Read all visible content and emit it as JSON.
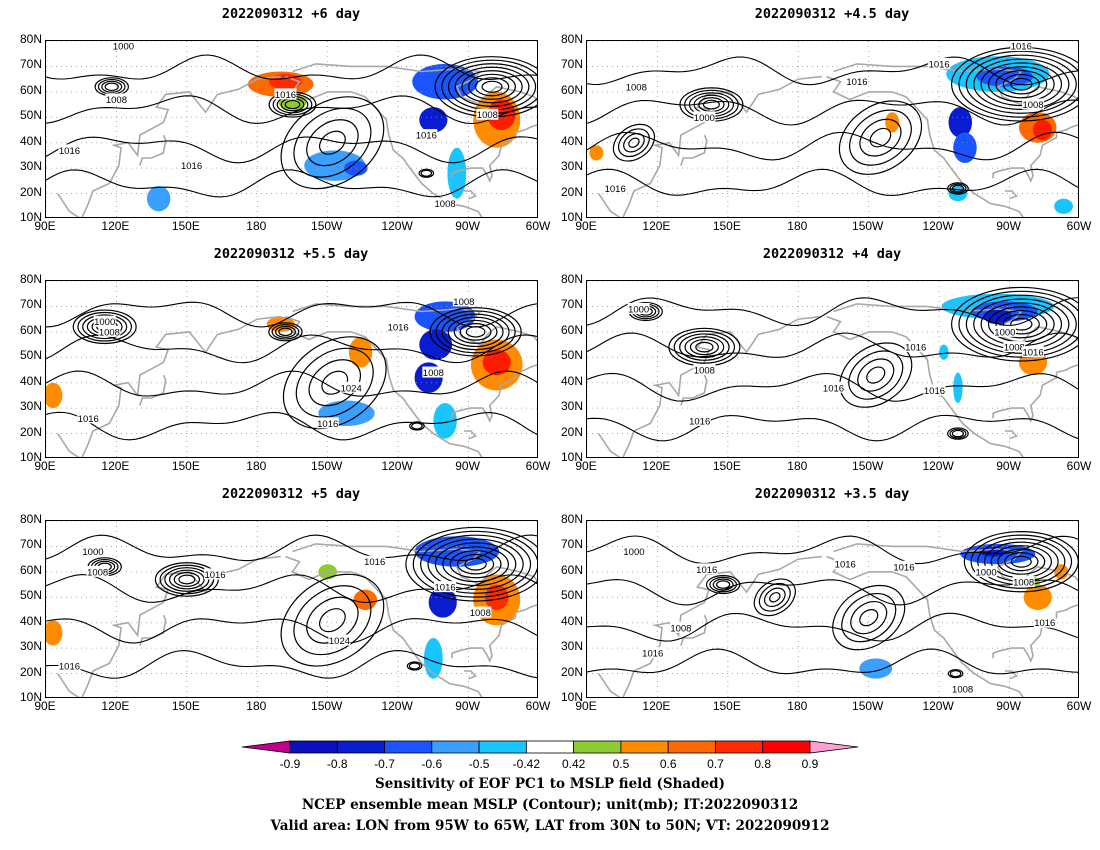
{
  "panels": [
    {
      "title": "2022090312 +6 day",
      "contour_labels": [
        "1000",
        "1008",
        "1016",
        "1016",
        "1016",
        "1016",
        "1008",
        "1008"
      ],
      "shading": [
        {
          "lon": -170,
          "lat": 63,
          "rx": 14,
          "ry": 5,
          "c": "#ff6a00"
        },
        {
          "lon": -168,
          "lat": 64,
          "rx": 7,
          "ry": 3,
          "c": "#ff2a00"
        },
        {
          "lon": -100,
          "lat": 64,
          "rx": 14,
          "ry": 7,
          "c": "#1a54ff"
        },
        {
          "lon": -105,
          "lat": 49,
          "rx": 6,
          "ry": 5,
          "c": "#0a1ccf"
        },
        {
          "lon": -78,
          "lat": 49,
          "rx": 10,
          "ry": 11,
          "c": "#ff8c00"
        },
        {
          "lon": -76,
          "lat": 51,
          "rx": 6,
          "ry": 6,
          "c": "#ff1a00"
        },
        {
          "lon": -147,
          "lat": 31,
          "rx": 13,
          "ry": 6,
          "c": "#3aa0ff"
        },
        {
          "lon": -138,
          "lat": 30,
          "rx": 5,
          "ry": 3,
          "c": "#1a54ff"
        },
        {
          "lon": 138,
          "lat": 18,
          "rx": 5,
          "ry": 5,
          "c": "#3aa0ff"
        },
        {
          "lon": -95,
          "lat": 28,
          "rx": 4,
          "ry": 10,
          "c": "#19c5ff"
        },
        {
          "lon": -165,
          "lat": 56,
          "rx": 6,
          "ry": 3,
          "c": "#8fcc32"
        }
      ]
    },
    {
      "title": "2022090312 +4.5 day",
      "contour_labels": [
        "1016",
        "1016",
        "1008",
        "1016",
        "1000",
        "1008",
        "1016"
      ],
      "shading": [
        {
          "lon": -95,
          "lat": 67,
          "rx": 22,
          "ry": 7,
          "c": "#19c5ff"
        },
        {
          "lon": -92,
          "lat": 66,
          "rx": 12,
          "ry": 4,
          "c": "#1a54ff"
        },
        {
          "lon": -111,
          "lat": 48,
          "rx": 5,
          "ry": 6,
          "c": "#0a1ccf"
        },
        {
          "lon": -109,
          "lat": 38,
          "rx": 5,
          "ry": 6,
          "c": "#1a54ff"
        },
        {
          "lon": -78,
          "lat": 46,
          "rx": 8,
          "ry": 6,
          "c": "#ff6a00"
        },
        {
          "lon": -76,
          "lat": 45,
          "rx": 4,
          "ry": 4,
          "c": "#ff1a00"
        },
        {
          "lon": -140,
          "lat": 48,
          "rx": 3,
          "ry": 4,
          "c": "#ff8c00"
        },
        {
          "lon": 94,
          "lat": 36,
          "rx": 3,
          "ry": 3,
          "c": "#ff8c00"
        },
        {
          "lon": -112,
          "lat": 20,
          "rx": 4,
          "ry": 3,
          "c": "#19c5ff"
        },
        {
          "lon": -67,
          "lat": 15,
          "rx": 4,
          "ry": 3,
          "c": "#19c5ff"
        }
      ]
    },
    {
      "title": "2022090312 +5.5 day",
      "contour_labels": [
        "1000",
        "1008",
        "1016",
        "1024",
        "1016",
        "1008",
        "1016",
        "1008"
      ],
      "shading": [
        {
          "lon": -100,
          "lat": 66,
          "rx": 13,
          "ry": 6,
          "c": "#1a54ff"
        },
        {
          "lon": -104,
          "lat": 55,
          "rx": 7,
          "ry": 6,
          "c": "#0a1ccf"
        },
        {
          "lon": -107,
          "lat": 42,
          "rx": 6,
          "ry": 6,
          "c": "#0a1ccf"
        },
        {
          "lon": -78,
          "lat": 47,
          "rx": 11,
          "ry": 10,
          "c": "#ff8c00"
        },
        {
          "lon": -78,
          "lat": 48,
          "rx": 6,
          "ry": 5,
          "c": "#ff1a00"
        },
        {
          "lon": -136,
          "lat": 52,
          "rx": 5,
          "ry": 6,
          "c": "#ff8c00"
        },
        {
          "lon": -142,
          "lat": 28,
          "rx": 12,
          "ry": 5,
          "c": "#3aa0ff"
        },
        {
          "lon": -170,
          "lat": 63,
          "rx": 6,
          "ry": 3,
          "c": "#ff8c00"
        },
        {
          "lon": 93,
          "lat": 35,
          "rx": 4,
          "ry": 5,
          "c": "#ff8c00"
        },
        {
          "lon": -100,
          "lat": 25,
          "rx": 5,
          "ry": 7,
          "c": "#19c5ff"
        }
      ]
    },
    {
      "title": "2022090312 +4 day",
      "contour_labels": [
        "1000",
        "1008",
        "1016",
        "1016",
        "1016",
        "1016",
        "1000",
        "1008",
        "1016"
      ],
      "shading": [
        {
          "lon": -95,
          "lat": 70,
          "rx": 24,
          "ry": 5,
          "c": "#19c5ff"
        },
        {
          "lon": -92,
          "lat": 68,
          "rx": 14,
          "ry": 4,
          "c": "#1a54ff"
        },
        {
          "lon": -95,
          "lat": 66,
          "rx": 6,
          "ry": 3,
          "c": "#0a1ccf"
        },
        {
          "lon": -80,
          "lat": 48,
          "rx": 6,
          "ry": 5,
          "c": "#ff8c00"
        },
        {
          "lon": -112,
          "lat": 38,
          "rx": 2,
          "ry": 6,
          "c": "#19c5ff"
        },
        {
          "lon": -118,
          "lat": 52,
          "rx": 2,
          "ry": 3,
          "c": "#19c5ff"
        }
      ]
    },
    {
      "title": "2022090312 +5 day",
      "contour_labels": [
        "1000",
        "1008",
        "1016",
        "1016",
        "1024",
        "1016",
        "1008",
        "1016"
      ],
      "shading": [
        {
          "lon": -95,
          "lat": 68,
          "rx": 18,
          "ry": 6,
          "c": "#1a54ff"
        },
        {
          "lon": -101,
          "lat": 48,
          "rx": 6,
          "ry": 6,
          "c": "#0a1ccf"
        },
        {
          "lon": -78,
          "lat": 49,
          "rx": 10,
          "ry": 10,
          "c": "#ff8c00"
        },
        {
          "lon": -78,
          "lat": 50,
          "rx": 5,
          "ry": 5,
          "c": "#ff2a00"
        },
        {
          "lon": -134,
          "lat": 49,
          "rx": 5,
          "ry": 4,
          "c": "#ff6a00"
        },
        {
          "lon": -150,
          "lat": 60,
          "rx": 4,
          "ry": 3,
          "c": "#8fcc32"
        },
        {
          "lon": 93,
          "lat": 36,
          "rx": 4,
          "ry": 5,
          "c": "#ff8c00"
        },
        {
          "lon": -105,
          "lat": 26,
          "rx": 4,
          "ry": 8,
          "c": "#19c5ff"
        }
      ]
    },
    {
      "title": "2022090312 +3.5 day",
      "contour_labels": [
        "1000",
        "1016",
        "1016",
        "1016",
        "1008",
        "1016",
        "1000",
        "1008",
        "1016",
        "1008"
      ],
      "shading": [
        {
          "lon": -95,
          "lat": 67,
          "rx": 16,
          "ry": 4,
          "c": "#1a54ff"
        },
        {
          "lon": -97,
          "lat": 68,
          "rx": 6,
          "ry": 2,
          "c": "#0a1ccf"
        },
        {
          "lon": -78,
          "lat": 50,
          "rx": 6,
          "ry": 5,
          "c": "#ff8c00"
        },
        {
          "lon": -147,
          "lat": 22,
          "rx": 7,
          "ry": 4,
          "c": "#3aa0ff"
        },
        {
          "lon": -80,
          "lat": 56,
          "rx": 3,
          "ry": 2,
          "c": "#8fcc32"
        },
        {
          "lon": -68,
          "lat": 60,
          "rx": 3,
          "ry": 3,
          "c": "#ff8c00"
        }
      ]
    }
  ],
  "lat_labels": [
    "80N",
    "70N",
    "60N",
    "50N",
    "40N",
    "30N",
    "20N",
    "10N"
  ],
  "lon_labels": [
    "90E",
    "120E",
    "150E",
    "180",
    "150W",
    "120W",
    "90W",
    "60W"
  ],
  "colorbar": {
    "colors": [
      "#c0008c",
      "#0a0fbf",
      "#0a1ccf",
      "#1a54ff",
      "#3aa0ff",
      "#19c5ff",
      "#ffffff",
      "#8fcc32",
      "#ff8c00",
      "#ff6a00",
      "#ff2a00",
      "#ff0000",
      "#ffa0d4"
    ],
    "labels": [
      "-0.9",
      "-0.8",
      "-0.7",
      "-0.6",
      "-0.5",
      "-0.42",
      "0.42",
      "0.5",
      "0.6",
      "0.7",
      "0.8",
      "0.9"
    ]
  },
  "caption": [
    "Sensitivity of EOF PC1 to MSLP field (Shaded)",
    "NCEP ensemble mean MSLP (Contour); unit(mb); IT:2022090312",
    "Valid area: LON from 95W to 65W, LAT from 30N to 50N; VT: 2022090912"
  ]
}
